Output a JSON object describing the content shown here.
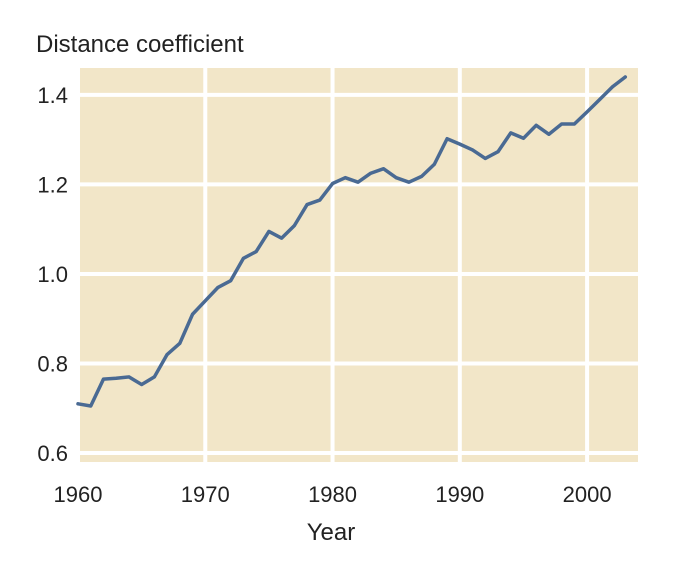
{
  "chart_data": {
    "type": "line",
    "ylabel": "Distance coefficient",
    "xlabel": "Year",
    "xlim": [
      1960,
      2004
    ],
    "ylim": [
      0.58,
      1.46
    ],
    "xticks": [
      1960,
      1970,
      1980,
      1990,
      2000
    ],
    "xtick_labels": [
      "1960",
      "1970",
      "1980",
      "1990",
      "2000"
    ],
    "yticks": [
      0.6,
      0.8,
      1.0,
      1.2,
      1.4
    ],
    "ytick_labels": [
      "0.6",
      "0.8",
      "1.0",
      "1.2",
      "1.4"
    ],
    "grid": true,
    "colors": {
      "background": "#f2e6c8",
      "grid": "#ffffff",
      "line": "#4a6a93"
    },
    "series": [
      {
        "x": [
          1960,
          1961,
          1962,
          1963,
          1964,
          1965,
          1966,
          1967,
          1968,
          1969,
          1970,
          1971,
          1972,
          1973,
          1974,
          1975,
          1976,
          1977,
          1978,
          1979,
          1980,
          1981,
          1982,
          1983,
          1984,
          1985,
          1986,
          1987,
          1988,
          1989,
          1990,
          1991,
          1992,
          1993,
          1994,
          1995,
          1996,
          1997,
          1998,
          1999,
          2000,
          2001,
          2002,
          2003
        ],
        "values": [
          0.71,
          0.705,
          0.765,
          0.767,
          0.77,
          0.753,
          0.77,
          0.82,
          0.845,
          0.91,
          0.94,
          0.97,
          0.985,
          1.035,
          1.05,
          1.095,
          1.08,
          1.108,
          1.155,
          1.165,
          1.202,
          1.215,
          1.205,
          1.225,
          1.235,
          1.215,
          1.205,
          1.218,
          1.245,
          1.302,
          1.29,
          1.277,
          1.258,
          1.273,
          1.315,
          1.303,
          1.332,
          1.312,
          1.335,
          1.335,
          1.362,
          1.39,
          1.418,
          1.44
        ]
      }
    ]
  }
}
